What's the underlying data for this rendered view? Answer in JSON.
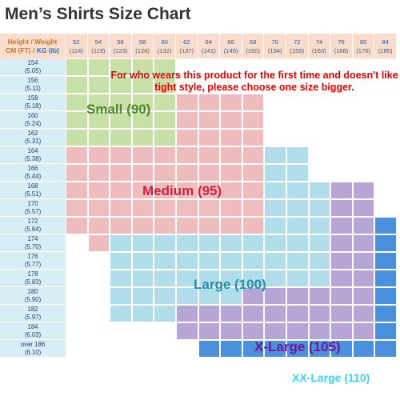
{
  "title": "Men’s Shirts Size Chart",
  "header": {
    "line1": "Height / Weight",
    "line2_a": "CM (FT) / ",
    "line2_b": "KG (lb)"
  },
  "weights": [
    {
      "kg": "52",
      "lb": "(114)"
    },
    {
      "kg": "54",
      "lb": "(119)"
    },
    {
      "kg": "56",
      "lb": "(123)"
    },
    {
      "kg": "58",
      "lb": "(128)"
    },
    {
      "kg": "60",
      "lb": "(132)"
    },
    {
      "kg": "62",
      "lb": "(137)"
    },
    {
      "kg": "64",
      "lb": "(141)"
    },
    {
      "kg": "66",
      "lb": "(145)"
    },
    {
      "kg": "68",
      "lb": "(150)"
    },
    {
      "kg": "70",
      "lb": "(154)"
    },
    {
      "kg": "72",
      "lb": "(159)"
    },
    {
      "kg": "74",
      "lb": "(163)"
    },
    {
      "kg": "76",
      "lb": "(168)"
    },
    {
      "kg": "80",
      "lb": "(176)"
    },
    {
      "kg": "84",
      "lb": "(185)"
    }
  ],
  "heights": [
    {
      "cm": "154",
      "ft": "(5.05)"
    },
    {
      "cm": "156",
      "ft": "(5.11)"
    },
    {
      "cm": "158",
      "ft": "(5.18)"
    },
    {
      "cm": "160",
      "ft": "(5.24)"
    },
    {
      "cm": "162",
      "ft": "(5.31)"
    },
    {
      "cm": "164",
      "ft": "(5.38)"
    },
    {
      "cm": "166",
      "ft": "(5.44)"
    },
    {
      "cm": "168",
      "ft": "(5.51)"
    },
    {
      "cm": "170",
      "ft": "(5.57)"
    },
    {
      "cm": "172",
      "ft": "(5.64)"
    },
    {
      "cm": "174",
      "ft": "(5.70)"
    },
    {
      "cm": "176",
      "ft": "(5.77)"
    },
    {
      "cm": "178",
      "ft": "(5.83)"
    },
    {
      "cm": "180",
      "ft": "(5.90)"
    },
    {
      "cm": "182",
      "ft": "(5.97)"
    },
    {
      "cm": "184",
      "ft": "(6.03)"
    },
    {
      "cm": "over 186",
      "ft": "(6.10)"
    }
  ],
  "sizes": [
    {
      "name": "Small (90)",
      "color": "#c6e0a8",
      "label_color": "#4f8a2a",
      "rows": [
        0,
        0,
        1,
        1,
        2,
        2,
        3,
        3,
        4,
        4
      ]
    },
    {
      "name": "Medium (95)",
      "color": "#eebcbc",
      "label_color": "#d61f3c",
      "rows": [
        2,
        4,
        2,
        7,
        2,
        7,
        2,
        7,
        5,
        8,
        5,
        10,
        5,
        10,
        5,
        10,
        5,
        11,
        7,
        11
      ]
    },
    {
      "name": "Large (100)",
      "color": "#b1dcea",
      "label_color": "#1f8fa8",
      "rows": [
        5,
        9,
        5,
        10,
        5,
        10,
        7,
        11,
        9,
        11,
        10,
        12,
        10,
        13,
        10,
        13,
        10,
        13,
        10,
        13
      ]
    },
    {
      "name": "X-Large (105)",
      "color": "#b7a5d6",
      "label_color": "#6a1b9a",
      "rows": [
        7,
        12,
        7,
        12,
        7,
        12,
        8,
        12,
        9,
        13,
        11,
        13,
        12,
        14,
        12,
        14,
        12,
        14
      ]
    },
    {
      "name": "XX-Large (110)",
      "color": "#4a90dc",
      "label_color": "#3fd2f0",
      "rows": [
        9,
        14,
        10,
        14,
        11,
        14,
        12,
        14,
        13,
        14,
        14,
        14,
        14,
        14,
        14,
        14,
        14,
        14
      ]
    }
  ],
  "note": "For who wears this product for the first time and doesn't like tight style, please choose one size bigger."
}
